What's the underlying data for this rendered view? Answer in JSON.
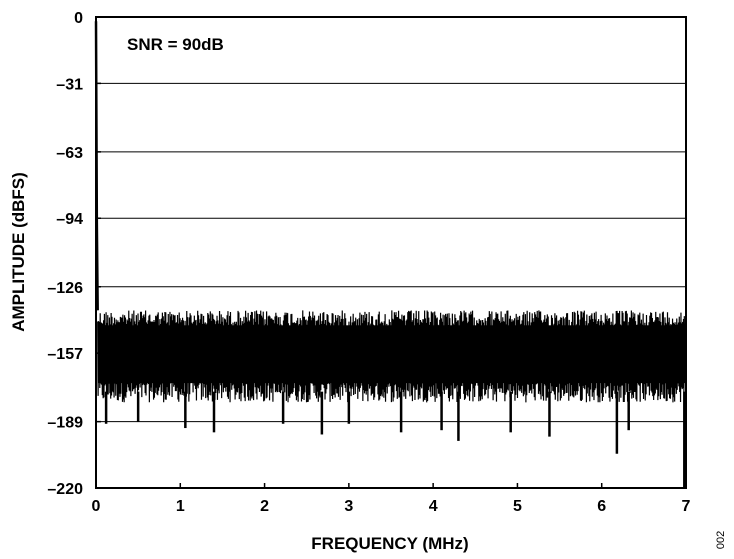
{
  "chart_data": {
    "type": "line",
    "xlabel": "FREQUENCY (MHz)",
    "ylabel": "AMPLITUDE (dBFS)",
    "xlim": [
      0,
      7
    ],
    "ylim": [
      -220,
      0
    ],
    "x_ticks": [
      "0",
      "1",
      "2",
      "3",
      "4",
      "5",
      "6",
      "7"
    ],
    "y_ticks": [
      "0",
      "–31",
      "–63",
      "–94",
      "–126",
      "–157",
      "–189",
      "–220"
    ],
    "y_tick_values": [
      0,
      -31,
      -63,
      -94,
      -126,
      -157,
      -189,
      -220
    ],
    "grid": "horizontal",
    "annotation": "SNR = 90dB",
    "figure_id": "002",
    "series": [
      {
        "noise_floor_top_dbfs": -137,
        "noise_floor_bottom_dbfs": -180,
        "deep_spur_dbfs": [
          {
            "x": 0.12,
            "y": -190
          },
          {
            "x": 0.5,
            "y": -189
          },
          {
            "x": 1.06,
            "y": -192
          },
          {
            "x": 1.4,
            "y": -194
          },
          {
            "x": 2.22,
            "y": -190
          },
          {
            "x": 2.68,
            "y": -195
          },
          {
            "x": 3.0,
            "y": -190
          },
          {
            "x": 3.62,
            "y": -194
          },
          {
            "x": 4.1,
            "y": -193
          },
          {
            "x": 4.3,
            "y": -198
          },
          {
            "x": 4.92,
            "y": -194
          },
          {
            "x": 5.38,
            "y": -196
          },
          {
            "x": 6.18,
            "y": -204
          },
          {
            "x": 6.32,
            "y": -193
          },
          {
            "x": 6.98,
            "y": -220
          }
        ],
        "dc_peak": [
          {
            "x": 0.0,
            "y": -2
          },
          {
            "x": 0.01,
            "y": -96
          },
          {
            "x": 0.02,
            "y": -137
          }
        ]
      }
    ]
  }
}
